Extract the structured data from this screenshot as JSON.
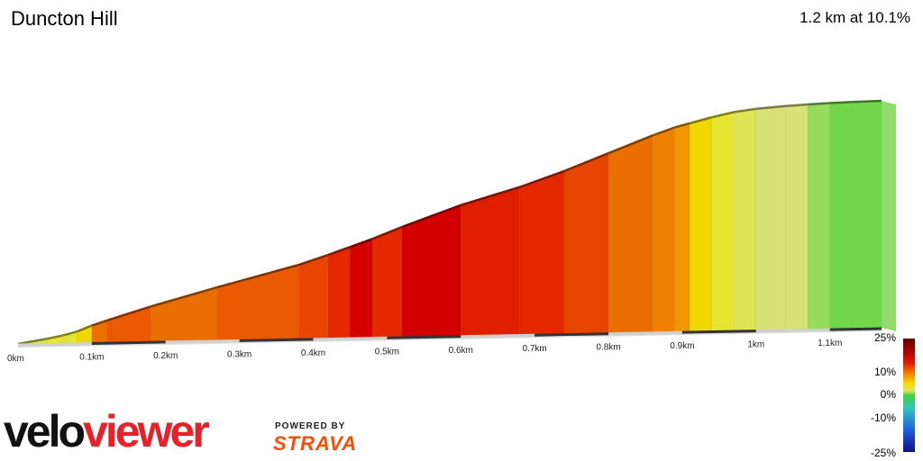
{
  "header": {
    "title": "Duncton Hill",
    "summary": "1.2 km at 10.1%"
  },
  "chart_data": {
    "type": "area",
    "title": "Duncton Hill",
    "xlabel": "",
    "ylabel": "",
    "x_ticks": [
      "0km",
      "0.1km",
      "0.2km",
      "0.3km",
      "0.4km",
      "0.5km",
      "0.6km",
      "0.7km",
      "0.8km",
      "0.9km",
      "1km",
      "1.1km"
    ],
    "x_tick_values": [
      0,
      0.1,
      0.2,
      0.3,
      0.4,
      0.5,
      0.6,
      0.7,
      0.8,
      0.9,
      1.0,
      1.1
    ],
    "xlim": [
      0,
      1.17
    ],
    "total_distance_km": 1.2,
    "average_gradient_pct": 10.1,
    "relative_elevation_m": [
      [
        0.0,
        0.0
      ],
      [
        0.04,
        2.5
      ],
      [
        0.06,
        4.0
      ],
      [
        0.08,
        6.0
      ],
      [
        0.1,
        9.0
      ],
      [
        0.12,
        11.5
      ],
      [
        0.18,
        18.5
      ],
      [
        0.27,
        28.0
      ],
      [
        0.38,
        39.0
      ],
      [
        0.42,
        44.0
      ],
      [
        0.45,
        48.0
      ],
      [
        0.48,
        52.0
      ],
      [
        0.52,
        58.0
      ],
      [
        0.6,
        69.0
      ],
      [
        0.68,
        78.0
      ],
      [
        0.74,
        86.0
      ],
      [
        0.8,
        95.0
      ],
      [
        0.86,
        104.0
      ],
      [
        0.89,
        108.0
      ],
      [
        0.91,
        110.0
      ],
      [
        0.94,
        113.0
      ],
      [
        0.97,
        115.5
      ],
      [
        1.0,
        117.0
      ],
      [
        1.04,
        118.2
      ],
      [
        1.07,
        118.8
      ],
      [
        1.1,
        119.3
      ],
      [
        1.13,
        119.7
      ],
      [
        1.17,
        120.0
      ]
    ],
    "segment_gradient_pct": [
      5,
      6,
      6,
      8,
      12,
      13,
      12,
      13,
      14,
      16,
      20,
      16,
      20,
      17,
      16,
      14,
      12,
      11,
      10,
      8,
      6,
      5,
      4,
      4,
      2,
      1,
      1
    ],
    "gradient_legend": {
      "labels": [
        "25%",
        "10%",
        "0%",
        "-10%",
        "-25%"
      ],
      "values": [
        25,
        10,
        0,
        -10,
        -25
      ]
    }
  },
  "branding": {
    "logo_text": "veloviewer",
    "powered_by": "POWERED BY",
    "strava": "STRAVA",
    "logo_color": "#e8202a"
  }
}
